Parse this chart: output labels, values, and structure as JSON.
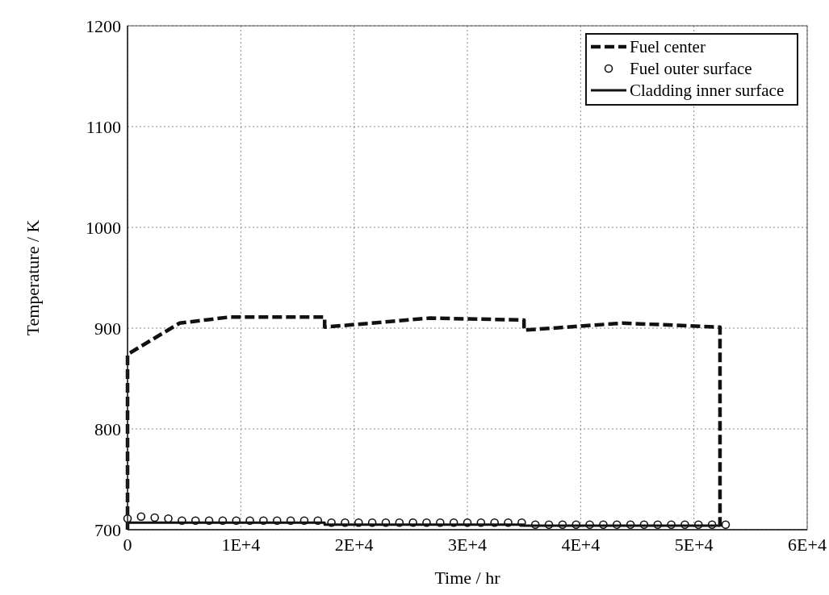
{
  "chart_data": {
    "type": "line",
    "xlabel": "Time / hr",
    "ylabel": "Temperature / K",
    "xlim": [
      0,
      60000
    ],
    "ylim": [
      700,
      1200
    ],
    "xticks": [
      0,
      {
        "value": 10000,
        "label": "1E+4"
      },
      {
        "value": 20000,
        "label": "2E+4"
      },
      {
        "value": 30000,
        "label": "3E+4"
      },
      {
        "value": 40000,
        "label": "4E+4"
      },
      {
        "value": 50000,
        "label": "5E+4"
      },
      {
        "value": 60000,
        "label": "6E+4"
      }
    ],
    "yticks": [
      700,
      800,
      900,
      1000,
      1100,
      1200
    ],
    "grid": true,
    "legend": "top right",
    "series": [
      {
        "name": "Fuel center",
        "color": "#111111",
        "line_style": "dashed",
        "marker": "none",
        "x": [
          0,
          0,
          4600,
          9000,
          17400,
          17400,
          26700,
          35000,
          35000,
          43700,
          52300,
          52300
        ],
        "values": [
          700,
          874,
          905,
          911,
          911,
          901,
          910,
          908,
          898,
          905,
          901,
          700
        ]
      },
      {
        "name": "Fuel outer surface",
        "type": "scatter",
        "color": "#111111",
        "marker": "circle",
        "x": [
          0,
          1200,
          2400,
          3600,
          4800,
          6000,
          7200,
          8400,
          9600,
          10800,
          12000,
          13200,
          14400,
          15600,
          16800,
          18000,
          19200,
          20400,
          21600,
          22800,
          24000,
          25200,
          26400,
          27600,
          28800,
          30000,
          31200,
          32400,
          33600,
          34800,
          36000,
          37200,
          38400,
          39600,
          40800,
          42000,
          43200,
          44400,
          45600,
          46800,
          48000,
          49200,
          50400,
          51600,
          52800
        ],
        "values": [
          711,
          713,
          712,
          711,
          709,
          709,
          709,
          709,
          709,
          709,
          709,
          709,
          709,
          709,
          709,
          707,
          707,
          707,
          707,
          707,
          707,
          707,
          707,
          707,
          707,
          707,
          707,
          707,
          707,
          707,
          705,
          705,
          705,
          705,
          705,
          705,
          705,
          705,
          705,
          705,
          705,
          705,
          705,
          705,
          705
        ]
      },
      {
        "name": "Cladding inner surface",
        "color": "#111111",
        "line_style": "solid",
        "marker": "none",
        "x": [
          0,
          17400,
          17400,
          35000,
          35000,
          52300
        ],
        "values": [
          707,
          707,
          705,
          705,
          704,
          704
        ]
      }
    ]
  }
}
